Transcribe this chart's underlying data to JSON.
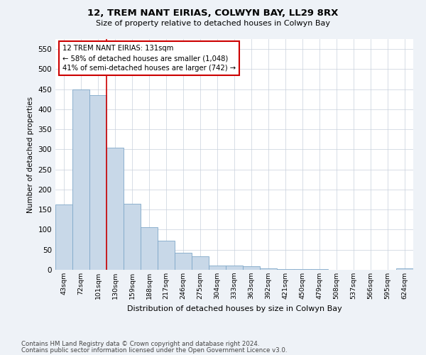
{
  "title1": "12, TREM NANT EIRIAS, COLWYN BAY, LL29 8RX",
  "title2": "Size of property relative to detached houses in Colwyn Bay",
  "xlabel": "Distribution of detached houses by size in Colwyn Bay",
  "ylabel": "Number of detached properties",
  "bar_labels": [
    "43sqm",
    "72sqm",
    "101sqm",
    "130sqm",
    "159sqm",
    "188sqm",
    "217sqm",
    "246sqm",
    "275sqm",
    "304sqm",
    "333sqm",
    "363sqm",
    "392sqm",
    "421sqm",
    "450sqm",
    "479sqm",
    "508sqm",
    "537sqm",
    "566sqm",
    "595sqm",
    "624sqm"
  ],
  "bar_values": [
    163,
    450,
    435,
    305,
    165,
    107,
    73,
    43,
    33,
    10,
    10,
    8,
    4,
    2,
    2,
    1,
    0,
    0,
    0,
    0,
    4
  ],
  "bar_color": "#c8d8e8",
  "bar_edge_color": "#7fa8c8",
  "annotation_line1": "12 TREM NANT EIRIAS: 131sqm",
  "annotation_line2": "← 58% of detached houses are smaller (1,048)",
  "annotation_line3": "41% of semi-detached houses are larger (742) →",
  "annotation_box_color": "#ffffff",
  "annotation_box_edge": "#cc0000",
  "vline_color": "#cc0000",
  "ylim": [
    0,
    575
  ],
  "yticks": [
    0,
    50,
    100,
    150,
    200,
    250,
    300,
    350,
    400,
    450,
    500,
    550
  ],
  "footer1": "Contains HM Land Registry data © Crown copyright and database right 2024.",
  "footer2": "Contains public sector information licensed under the Open Government Licence v3.0.",
  "bg_color": "#eef2f7",
  "plot_bg_color": "#ffffff",
  "grid_color": "#c8d0dc"
}
